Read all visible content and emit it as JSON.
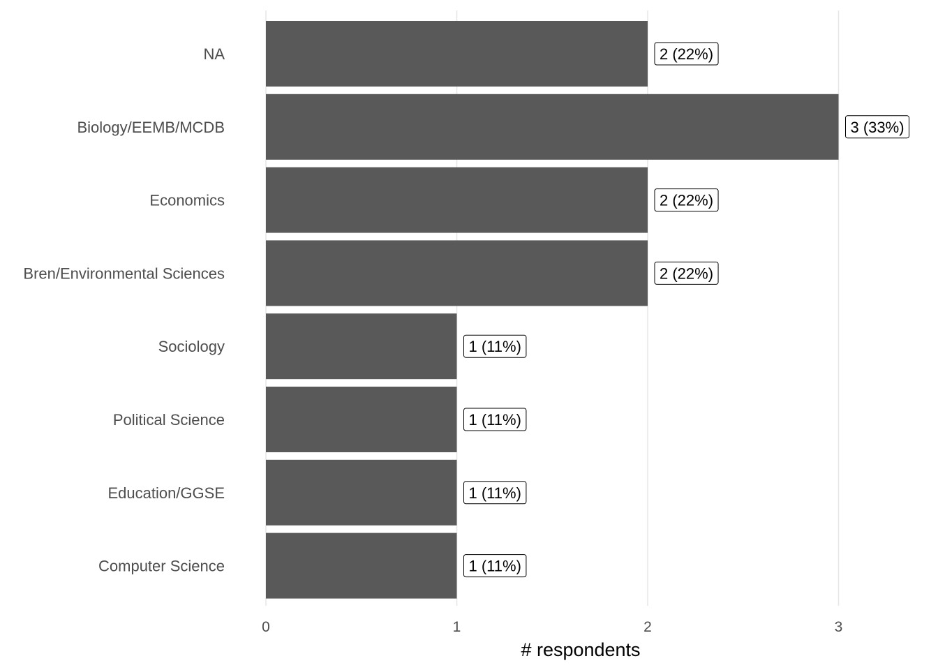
{
  "chart_data": {
    "type": "bar",
    "orientation": "horizontal",
    "categories": [
      "NA",
      "Biology/EEMB/MCDB",
      "Economics",
      "Bren/Environmental Sciences",
      "Sociology",
      "Political Science",
      "Education/GGSE",
      "Computer Science"
    ],
    "values": [
      2,
      3,
      2,
      2,
      1,
      1,
      1,
      1
    ],
    "data_labels": [
      "2 (22%)",
      "3 (33%)",
      "2 (22%)",
      "2 (22%)",
      "1 (11%)",
      "1 (11%)",
      "1 (11%)",
      "1 (11%)"
    ],
    "xlabel": "# respondents",
    "ylabel": "",
    "xlim": [
      0,
      3
    ],
    "x_ticks": [
      0,
      1,
      2,
      3
    ],
    "x_tick_labels": [
      "0",
      "1",
      "2",
      "3"
    ],
    "grid": "vertical",
    "legend": "none",
    "colors": {
      "bar": "#595959",
      "grid": "#e6e6e6",
      "label_border": "#000000"
    }
  }
}
